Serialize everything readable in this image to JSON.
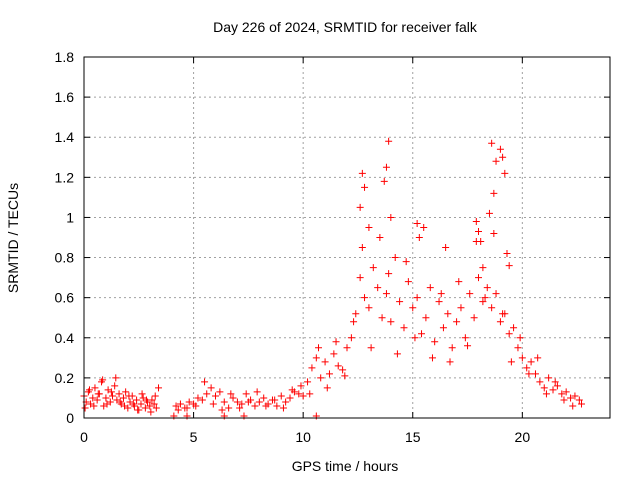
{
  "chart_data": {
    "type": "scatter",
    "title": "Day 226 of 2024, SRMTID for receiver falk",
    "xlabel": "GPS time / hours",
    "ylabel": "SRMTID / TECUs",
    "xlim": [
      0,
      24
    ],
    "ylim": [
      0,
      1.8
    ],
    "xticks": [
      0,
      5,
      10,
      15,
      20
    ],
    "yticks": [
      0,
      0.2,
      0.4,
      0.6,
      0.8,
      1,
      1.2,
      1.4,
      1.6,
      1.8
    ],
    "ytick_labels": [
      "0",
      "0.2",
      "0.4",
      "0.6",
      "0.8",
      "1",
      "1.2",
      "1.4",
      "1.6",
      "1.8"
    ],
    "grid": true,
    "marker": "+",
    "color": "#ff0000",
    "series": [
      {
        "name": "SRMTID",
        "x": [
          0.0,
          0.1,
          0.2,
          0.3,
          0.4,
          0.5,
          0.6,
          0.7,
          0.8,
          0.9,
          1.0,
          1.1,
          1.2,
          1.3,
          1.4,
          1.5,
          1.6,
          1.7,
          1.8,
          1.9,
          2.0,
          2.1,
          2.2,
          2.3,
          2.4,
          2.5,
          2.6,
          2.7,
          2.8,
          2.9,
          3.0,
          3.1,
          3.2,
          3.3,
          3.4,
          0.05,
          0.25,
          0.45,
          0.65,
          0.85,
          1.05,
          1.25,
          1.45,
          1.65,
          1.85,
          2.05,
          2.25,
          2.45,
          2.65,
          2.85,
          3.05,
          3.25,
          4.2,
          4.4,
          4.6,
          4.8,
          5.0,
          5.2,
          5.4,
          5.6,
          5.8,
          6.0,
          6.2,
          6.4,
          6.6,
          6.8,
          7.0,
          7.2,
          7.4,
          7.6,
          7.8,
          8.0,
          8.2,
          8.4,
          8.6,
          8.8,
          9.0,
          9.2,
          9.4,
          9.6,
          9.8,
          10.0,
          4.3,
          4.7,
          5.1,
          5.5,
          5.9,
          6.3,
          6.7,
          7.1,
          7.5,
          7.9,
          8.3,
          8.7,
          9.1,
          9.5,
          9.9,
          10.2,
          10.4,
          10.6,
          10.8,
          11.0,
          11.2,
          11.4,
          11.6,
          11.8,
          12.0,
          12.2,
          12.4,
          12.6,
          12.8,
          13.0,
          13.2,
          13.4,
          13.6,
          13.8,
          14.0,
          14.2,
          14.4,
          14.6,
          14.8,
          15.0,
          15.2,
          15.4,
          15.6,
          15.8,
          16.0,
          16.2,
          16.4,
          16.6,
          16.8,
          17.0,
          17.2,
          17.4,
          17.6,
          17.8,
          18.0,
          18.2,
          18.4,
          18.6,
          18.8,
          19.0,
          19.2,
          19.4,
          19.6,
          19.8,
          20.0,
          20.2,
          20.4,
          20.6,
          20.8,
          21.0,
          21.2,
          21.4,
          21.6,
          21.8,
          22.0,
          22.2,
          22.4,
          22.6,
          10.3,
          10.7,
          11.1,
          11.5,
          11.9,
          12.3,
          12.7,
          13.1,
          13.5,
          13.9,
          14.3,
          14.7,
          15.1,
          15.5,
          15.9,
          16.3,
          16.7,
          17.1,
          17.5,
          17.9,
          18.3,
          18.7,
          19.1,
          19.5,
          19.9,
          20.3,
          20.7,
          21.1,
          21.5,
          21.9,
          22.3,
          22.7,
          12.6,
          12.7,
          12.8,
          13.0,
          13.7,
          13.8,
          13.9,
          14.0,
          15.2,
          15.3,
          16.5,
          17.9,
          18.0,
          18.1,
          18.2,
          18.5,
          18.6,
          18.7,
          18.8,
          19.0,
          19.1,
          19.2,
          19.3,
          19.4,
          4.1,
          4.7,
          6.4,
          7.3,
          10.6
        ],
        "y": [
          0.11,
          0.08,
          0.13,
          0.07,
          0.1,
          0.15,
          0.09,
          0.12,
          0.18,
          0.06,
          0.1,
          0.14,
          0.08,
          0.11,
          0.16,
          0.09,
          0.12,
          0.07,
          0.1,
          0.13,
          0.05,
          0.08,
          0.11,
          0.06,
          0.09,
          0.04,
          0.07,
          0.1,
          0.05,
          0.08,
          0.06,
          0.09,
          0.07,
          0.05,
          0.15,
          0.05,
          0.14,
          0.06,
          0.12,
          0.19,
          0.07,
          0.13,
          0.2,
          0.08,
          0.06,
          0.11,
          0.07,
          0.04,
          0.12,
          0.09,
          0.03,
          0.11,
          0.06,
          0.07,
          0.05,
          0.08,
          0.07,
          0.1,
          0.09,
          0.12,
          0.15,
          0.11,
          0.13,
          0.08,
          0.05,
          0.1,
          0.08,
          0.07,
          0.12,
          0.09,
          0.06,
          0.08,
          0.1,
          0.07,
          0.09,
          0.06,
          0.11,
          0.08,
          0.1,
          0.13,
          0.12,
          0.11,
          0.04,
          0.05,
          0.06,
          0.18,
          0.07,
          0.04,
          0.12,
          0.05,
          0.08,
          0.13,
          0.06,
          0.09,
          0.05,
          0.14,
          0.16,
          0.18,
          0.25,
          0.3,
          0.2,
          0.28,
          0.22,
          0.32,
          0.26,
          0.24,
          0.35,
          0.4,
          0.52,
          0.7,
          0.6,
          0.55,
          0.75,
          0.65,
          0.5,
          0.62,
          0.48,
          0.8,
          0.58,
          0.45,
          0.68,
          0.55,
          0.6,
          0.42,
          0.5,
          0.65,
          0.38,
          0.58,
          0.45,
          0.52,
          0.35,
          0.48,
          0.55,
          0.4,
          0.62,
          0.5,
          0.7,
          0.58,
          0.65,
          0.55,
          0.62,
          0.48,
          0.52,
          0.42,
          0.45,
          0.35,
          0.3,
          0.25,
          0.28,
          0.22,
          0.18,
          0.15,
          0.2,
          0.14,
          0.16,
          0.12,
          0.13,
          0.1,
          0.11,
          0.09,
          0.12,
          0.35,
          0.15,
          0.38,
          0.21,
          0.48,
          0.85,
          0.35,
          0.9,
          0.72,
          0.32,
          0.78,
          0.4,
          0.95,
          0.3,
          0.62,
          0.28,
          0.68,
          0.36,
          0.88,
          0.6,
          0.92,
          0.52,
          0.28,
          0.4,
          0.22,
          0.3,
          0.12,
          0.18,
          0.09,
          0.06,
          0.07,
          1.05,
          1.22,
          1.15,
          0.95,
          1.18,
          1.25,
          1.38,
          1.0,
          0.97,
          0.9,
          0.85,
          0.98,
          0.93,
          0.88,
          0.75,
          1.02,
          1.37,
          1.12,
          1.28,
          1.34,
          1.3,
          1.22,
          0.82,
          0.76,
          0.01,
          0.01,
          0.01,
          0.01,
          0.01
        ]
      }
    ]
  }
}
